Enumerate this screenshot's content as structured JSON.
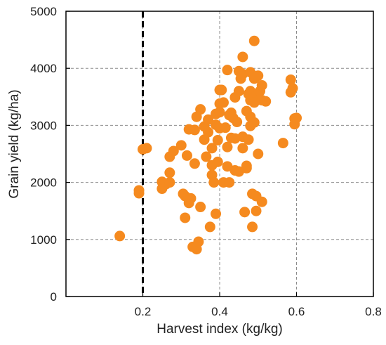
{
  "chart_data": {
    "type": "scatter",
    "xlabel": "Harvest  index (kg/kg)",
    "ylabel": "Grain yield (kg/ha)",
    "xlim": [
      0,
      0.8
    ],
    "ylim": [
      0,
      5000
    ],
    "x_ticks": [
      0.2,
      0.4,
      0.6,
      0.8
    ],
    "x_tick_labels": [
      "0.2",
      "0.4",
      "0.6",
      "0.8"
    ],
    "y_ticks": [
      0,
      1000,
      2000,
      3000,
      4000,
      5000
    ],
    "y_tick_labels": [
      "0",
      "1000",
      "2000",
      "3000",
      "4000",
      "5000"
    ],
    "grid": true,
    "reference_line": {
      "x": 0.2,
      "style": "dashed"
    },
    "marker_color": "#f58a1f",
    "series": [
      {
        "points": [
          [
            0.14,
            1060
          ],
          [
            0.19,
            1860
          ],
          [
            0.19,
            1810
          ],
          [
            0.2,
            2580
          ],
          [
            0.21,
            2600
          ],
          [
            0.25,
            2010
          ],
          [
            0.25,
            1890
          ],
          [
            0.26,
            1970
          ],
          [
            0.27,
            2450
          ],
          [
            0.27,
            2170
          ],
          [
            0.27,
            2000
          ],
          [
            0.28,
            2550
          ],
          [
            0.3,
            2650
          ],
          [
            0.305,
            1800
          ],
          [
            0.31,
            1760
          ],
          [
            0.31,
            1380
          ],
          [
            0.315,
            2470
          ],
          [
            0.32,
            2930
          ],
          [
            0.32,
            1640
          ],
          [
            0.325,
            1720
          ],
          [
            0.33,
            870
          ],
          [
            0.335,
            2920
          ],
          [
            0.335,
            2330
          ],
          [
            0.34,
            3150
          ],
          [
            0.34,
            830
          ],
          [
            0.345,
            960
          ],
          [
            0.35,
            3280
          ],
          [
            0.35,
            1570
          ],
          [
            0.36,
            2980
          ],
          [
            0.36,
            2750
          ],
          [
            0.365,
            2450
          ],
          [
            0.37,
            3100
          ],
          [
            0.37,
            2880
          ],
          [
            0.375,
            1220
          ],
          [
            0.38,
            2600
          ],
          [
            0.38,
            2300
          ],
          [
            0.38,
            2130
          ],
          [
            0.385,
            2000
          ],
          [
            0.39,
            3200
          ],
          [
            0.39,
            3010
          ],
          [
            0.39,
            1450
          ],
          [
            0.395,
            2740
          ],
          [
            0.395,
            2360
          ],
          [
            0.4,
            3620
          ],
          [
            0.4,
            3380
          ],
          [
            0.4,
            3230
          ],
          [
            0.4,
            2950
          ],
          [
            0.405,
            3620
          ],
          [
            0.41,
            3400
          ],
          [
            0.41,
            2000
          ],
          [
            0.415,
            2960
          ],
          [
            0.42,
            3970
          ],
          [
            0.42,
            2620
          ],
          [
            0.42,
            2280
          ],
          [
            0.425,
            3180
          ],
          [
            0.425,
            2000
          ],
          [
            0.43,
            3220
          ],
          [
            0.43,
            2780
          ],
          [
            0.435,
            3130
          ],
          [
            0.44,
            3490
          ],
          [
            0.44,
            2770
          ],
          [
            0.44,
            2210
          ],
          [
            0.445,
            3060
          ],
          [
            0.45,
            3950
          ],
          [
            0.45,
            3600
          ],
          [
            0.45,
            2190
          ],
          [
            0.455,
            3820
          ],
          [
            0.46,
            4200
          ],
          [
            0.46,
            3900
          ],
          [
            0.46,
            2800
          ],
          [
            0.46,
            2600
          ],
          [
            0.465,
            1480
          ],
          [
            0.47,
            3250
          ],
          [
            0.47,
            2250
          ],
          [
            0.47,
            2290
          ],
          [
            0.475,
            3550
          ],
          [
            0.475,
            2750
          ],
          [
            0.48,
            3930
          ],
          [
            0.48,
            3600
          ],
          [
            0.48,
            3440
          ],
          [
            0.48,
            3150
          ],
          [
            0.48,
            2990
          ],
          [
            0.485,
            1800
          ],
          [
            0.485,
            1220
          ],
          [
            0.49,
            3820
          ],
          [
            0.49,
            3500
          ],
          [
            0.49,
            3400
          ],
          [
            0.49,
            3050
          ],
          [
            0.49,
            4480
          ],
          [
            0.495,
            1760
          ],
          [
            0.495,
            1500
          ],
          [
            0.5,
            3870
          ],
          [
            0.5,
            2500
          ],
          [
            0.505,
            3600
          ],
          [
            0.51,
            3700
          ],
          [
            0.51,
            3440
          ],
          [
            0.51,
            1660
          ],
          [
            0.52,
            3420
          ],
          [
            0.565,
            2690
          ],
          [
            0.585,
            3800
          ],
          [
            0.585,
            3580
          ],
          [
            0.59,
            3650
          ],
          [
            0.595,
            3120
          ],
          [
            0.595,
            3020
          ],
          [
            0.6,
            3130
          ]
        ]
      }
    ]
  }
}
